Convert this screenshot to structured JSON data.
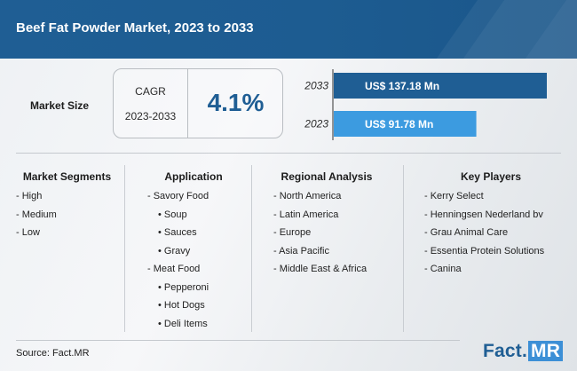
{
  "title": "Beef Fat Powder Market, 2023 to 2033",
  "market_size_label": "Market Size",
  "cagr": {
    "label": "CAGR",
    "period": "2023-2033",
    "value": "4.1%"
  },
  "colors": {
    "header": "#1f5e94",
    "bar_2033": "#1f5e94",
    "bar_2023": "#3c9be0",
    "accent": "#1f5e94"
  },
  "chart_data": {
    "type": "bar",
    "orientation": "horizontal",
    "categories": [
      "2033",
      "2023"
    ],
    "values": [
      137.18,
      91.78
    ],
    "value_labels": [
      "US$ 137.18 Mn",
      "US$ 91.78 Mn"
    ],
    "unit": "US$ Mn",
    "xlim": [
      0,
      137.18
    ],
    "grid": false,
    "legend": "none"
  },
  "segments": {
    "title": "Market Segments",
    "items": [
      {
        "text": "- High",
        "sub": false
      },
      {
        "text": "- Medium",
        "sub": false
      },
      {
        "text": "- Low",
        "sub": false
      }
    ]
  },
  "application": {
    "title": "Application",
    "items": [
      {
        "text": "- Savory Food",
        "sub": false
      },
      {
        "text": "• Soup",
        "sub": true
      },
      {
        "text": "• Sauces",
        "sub": true
      },
      {
        "text": "• Gravy",
        "sub": true
      },
      {
        "text": "- Meat Food",
        "sub": false
      },
      {
        "text": "• Pepperoni",
        "sub": true
      },
      {
        "text": "• Hot Dogs",
        "sub": true
      },
      {
        "text": "• Deli Items",
        "sub": true
      }
    ]
  },
  "regional": {
    "title": "Regional Analysis",
    "items": [
      {
        "text": "- North America",
        "sub": false
      },
      {
        "text": "- Latin America",
        "sub": false
      },
      {
        "text": "- Europe",
        "sub": false
      },
      {
        "text": "- Asia Pacific",
        "sub": false
      },
      {
        "text": "- Middle East & Africa",
        "sub": false
      }
    ]
  },
  "players": {
    "title": "Key Players",
    "items": [
      {
        "text": "- Kerry Select",
        "sub": false
      },
      {
        "text": "- Henningsen Nederland bv",
        "sub": false
      },
      {
        "text": "- Grau Animal Care",
        "sub": false
      },
      {
        "text": "- Essentia Protein Solutions",
        "sub": false
      },
      {
        "text": "- Canina",
        "sub": false
      }
    ]
  },
  "source": "Source: Fact.MR",
  "logo": {
    "part1": "Fact.",
    "part2": "MR"
  }
}
